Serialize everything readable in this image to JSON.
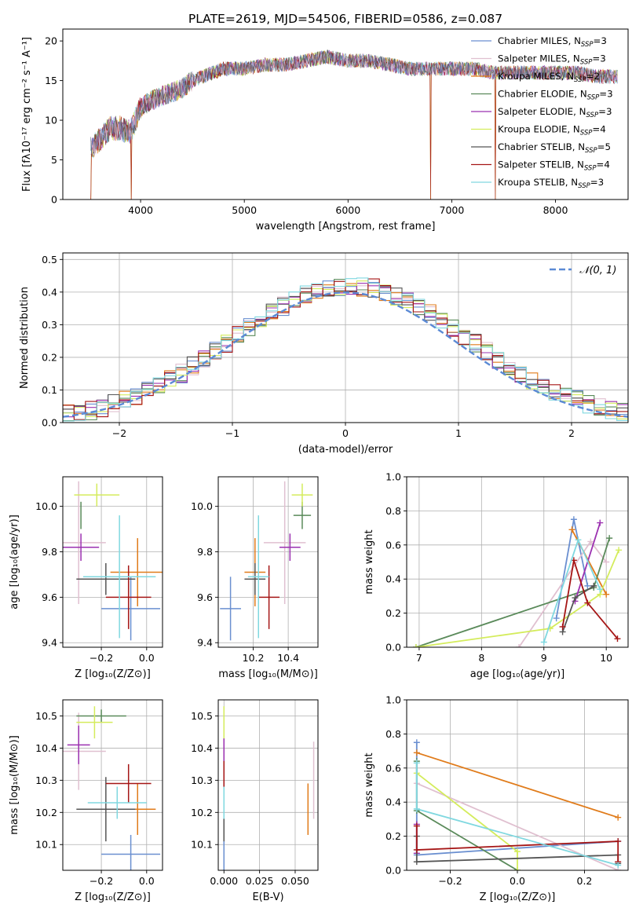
{
  "figure_title": "PLATE=2619, MJD=54506, FIBERID=0586, z=0.087",
  "models": [
    {
      "name": "Chabrier MILES",
      "nssp": "3",
      "color": "#6a8fd0"
    },
    {
      "name": "Salpeter MILES",
      "nssp": "3",
      "color": "#e0c0d0"
    },
    {
      "name": "Kroupa MILES",
      "nssp": "2",
      "color": "#e07b1a"
    },
    {
      "name": "Chabrier ELODIE",
      "nssp": "3",
      "color": "#5a8a5a"
    },
    {
      "name": "Salpeter ELODIE",
      "nssp": "3",
      "color": "#9b30b0"
    },
    {
      "name": "Kroupa ELODIE",
      "nssp": "4",
      "color": "#d4ec5c"
    },
    {
      "name": "Chabrier STELIB",
      "nssp": "5",
      "color": "#555555"
    },
    {
      "name": "Salpeter STELIB",
      "nssp": "4",
      "color": "#a51515"
    },
    {
      "name": "Kroupa STELIB",
      "nssp": "3",
      "color": "#80d8e0"
    }
  ],
  "legend_suffix": "N",
  "legend_sub": "SSP",
  "chart_data": [
    {
      "id": "spectrum",
      "type": "line",
      "xlabel": "wavelength [Angstrom, rest frame]",
      "ylabel": "Flux [fλ10⁻¹⁷ erg cm⁻² s⁻¹ A⁻¹]",
      "xlim": [
        3250,
        8700
      ],
      "ylim": [
        0,
        21.5
      ],
      "xticks": [
        4000,
        5000,
        6000,
        7000,
        8000
      ],
      "yticks": [
        0,
        5,
        10,
        15,
        20
      ],
      "grid": false,
      "legend": "right",
      "trend": [
        [
          3520,
          6.5
        ],
        [
          3600,
          7.5
        ],
        [
          3700,
          9
        ],
        [
          3800,
          9
        ],
        [
          3900,
          8.5
        ],
        [
          4000,
          11.5
        ],
        [
          4100,
          12.5
        ],
        [
          4200,
          13
        ],
        [
          4300,
          13.5
        ],
        [
          4400,
          14
        ],
        [
          4500,
          15
        ],
        [
          4600,
          15.5
        ],
        [
          4700,
          16
        ],
        [
          4800,
          16.5
        ],
        [
          5000,
          16.5
        ],
        [
          5200,
          17
        ],
        [
          5400,
          17
        ],
        [
          5600,
          17.5
        ],
        [
          5800,
          18
        ],
        [
          6000,
          17.5
        ],
        [
          6200,
          17.5
        ],
        [
          6400,
          17
        ],
        [
          6600,
          16.5
        ],
        [
          6800,
          16.5
        ],
        [
          7000,
          16.5
        ],
        [
          7200,
          16.5
        ],
        [
          7400,
          16
        ],
        [
          7600,
          16
        ],
        [
          7800,
          16
        ],
        [
          8000,
          16
        ],
        [
          8200,
          16
        ],
        [
          8400,
          15.5
        ],
        [
          8600,
          15.5
        ]
      ],
      "dips": [
        [
          3520,
          0
        ],
        [
          3910,
          0
        ],
        [
          6795,
          0
        ],
        [
          7420,
          0
        ]
      ]
    },
    {
      "id": "residuals",
      "type": "step",
      "xlabel": "(data-model)/error",
      "ylabel": "Normed distribution",
      "xlim": [
        -2.5,
        2.5
      ],
      "ylim": [
        0,
        0.52
      ],
      "xticks": [
        -2,
        -1,
        0,
        1,
        2
      ],
      "yticks": [
        0.0,
        0.1,
        0.2,
        0.3,
        0.4,
        0.5
      ],
      "grid": true,
      "legend": "top-right",
      "reference": "𝒩(0, 1)",
      "bin_width": 0.1
    },
    {
      "id": "age_vs_Z",
      "type": "errorbar",
      "xlabel": "Z [log₁₀(Z/Z⊙)]",
      "ylabel": "age  [log₁₀(age/yr)]",
      "xlim": [
        -0.37,
        0.07
      ],
      "ylim": [
        9.38,
        10.13
      ],
      "xticks": [
        -0.2,
        0.0
      ],
      "yticks": [
        9.4,
        9.6,
        9.8,
        10.0
      ],
      "grid": true,
      "points": [
        {
          "x": -0.07,
          "y": 9.55,
          "xerr": 0.13,
          "yerr": 0.14,
          "c": 0
        },
        {
          "x": -0.3,
          "y": 9.84,
          "xerr": 0.12,
          "yerr": 0.27,
          "c": 1
        },
        {
          "x": -0.04,
          "y": 9.71,
          "xerr": 0.12,
          "yerr": 0.15,
          "c": 2
        },
        {
          "x": -0.29,
          "y": 9.96,
          "xerr": 0.0,
          "yerr": 0.06,
          "c": 3
        },
        {
          "x": -0.29,
          "y": 9.82,
          "xerr": 0.08,
          "yerr": 0.06,
          "c": 4
        },
        {
          "x": -0.22,
          "y": 10.05,
          "xerr": 0.1,
          "yerr": 0.05,
          "c": 5
        },
        {
          "x": -0.18,
          "y": 9.68,
          "xerr": 0.13,
          "yerr": 0.07,
          "c": 6
        },
        {
          "x": -0.08,
          "y": 9.6,
          "xerr": 0.1,
          "yerr": 0.14,
          "c": 7
        },
        {
          "x": -0.12,
          "y": 9.69,
          "xerr": 0.16,
          "yerr": 0.27,
          "c": 8
        }
      ]
    },
    {
      "id": "age_vs_mass",
      "type": "errorbar",
      "xlabel": "mass [log₁₀(M/M⊙)]",
      "ylabel": "",
      "xlim": [
        10.0,
        10.57
      ],
      "ylim": [
        9.38,
        10.13
      ],
      "xticks": [
        10.2,
        10.4
      ],
      "yticks": [
        9.4,
        9.6,
        9.8,
        10.0
      ],
      "grid": true,
      "points": [
        {
          "x": 10.07,
          "y": 9.55,
          "xerr": 0.06,
          "yerr": 0.14,
          "c": 0
        },
        {
          "x": 10.38,
          "y": 9.84,
          "xerr": 0.12,
          "yerr": 0.27,
          "c": 1
        },
        {
          "x": 10.21,
          "y": 9.71,
          "xerr": 0.06,
          "yerr": 0.15,
          "c": 2
        },
        {
          "x": 10.48,
          "y": 9.96,
          "xerr": 0.05,
          "yerr": 0.06,
          "c": 3
        },
        {
          "x": 10.41,
          "y": 9.82,
          "xerr": 0.06,
          "yerr": 0.06,
          "c": 4
        },
        {
          "x": 10.48,
          "y": 10.05,
          "xerr": 0.06,
          "yerr": 0.05,
          "c": 5
        },
        {
          "x": 10.21,
          "y": 9.68,
          "xerr": 0.06,
          "yerr": 0.07,
          "c": 6
        },
        {
          "x": 10.29,
          "y": 9.6,
          "xerr": 0.06,
          "yerr": 0.14,
          "c": 7
        },
        {
          "x": 10.23,
          "y": 9.69,
          "xerr": 0.06,
          "yerr": 0.27,
          "c": 8
        }
      ]
    },
    {
      "id": "weight_vs_age",
      "type": "line",
      "xlabel": "age  [log₁₀(age/yr)]",
      "ylabel": "mass weight",
      "xlim": [
        6.8,
        10.35
      ],
      "ylim": [
        0,
        1.0
      ],
      "xticks": [
        7,
        8,
        9,
        10
      ],
      "yticks": [
        0.0,
        0.2,
        0.4,
        0.6,
        0.8,
        1.0
      ],
      "grid": true,
      "series": [
        {
          "c": 0,
          "points": [
            [
              9.2,
              0.17
            ],
            [
              9.48,
              0.75
            ],
            [
              9.7,
              0.36
            ]
          ]
        },
        {
          "c": 1,
          "points": [
            [
              8.6,
              0.0
            ],
            [
              9.75,
              0.62
            ],
            [
              10.0,
              0.5
            ]
          ]
        },
        {
          "c": 2,
          "points": [
            [
              9.45,
              0.69
            ],
            [
              10.0,
              0.31
            ]
          ]
        },
        {
          "c": 3,
          "points": [
            [
              6.95,
              0.0
            ],
            [
              9.8,
              0.35
            ],
            [
              10.05,
              0.64
            ]
          ]
        },
        {
          "c": 4,
          "points": [
            [
              9.5,
              0.27
            ],
            [
              9.9,
              0.73
            ]
          ]
        },
        {
          "c": 5,
          "points": [
            [
              6.95,
              0.0
            ],
            [
              9.1,
              0.11
            ],
            [
              9.9,
              0.31
            ],
            [
              10.2,
              0.57
            ]
          ]
        },
        {
          "c": 6,
          "points": [
            [
              9.3,
              0.09
            ],
            [
              9.5,
              0.29
            ],
            [
              9.8,
              0.36
            ]
          ]
        },
        {
          "c": 7,
          "points": [
            [
              9.3,
              0.12
            ],
            [
              9.48,
              0.51
            ],
            [
              9.7,
              0.26
            ],
            [
              10.18,
              0.05
            ]
          ]
        },
        {
          "c": 8,
          "points": [
            [
              9.0,
              0.03
            ],
            [
              9.55,
              0.63
            ],
            [
              9.9,
              0.34
            ]
          ]
        }
      ]
    },
    {
      "id": "mass_vs_Z",
      "type": "errorbar",
      "xlabel": "Z [log₁₀(Z/Z⊙)]",
      "ylabel": "mass [log₁₀(M/M⊙)]",
      "xlim": [
        -0.37,
        0.07
      ],
      "ylim": [
        10.02,
        10.55
      ],
      "xticks": [
        -0.2,
        0.0
      ],
      "yticks": [
        10.1,
        10.2,
        10.3,
        10.4,
        10.5
      ],
      "grid": true,
      "points": [
        {
          "x": -0.07,
          "y": 10.07,
          "xerr": 0.13,
          "yerr": 0.06,
          "c": 0
        },
        {
          "x": -0.3,
          "y": 10.39,
          "xerr": 0.12,
          "yerr": 0.12,
          "c": 1
        },
        {
          "x": -0.04,
          "y": 10.21,
          "xerr": 0.08,
          "yerr": 0.08,
          "c": 2
        },
        {
          "x": -0.2,
          "y": 10.5,
          "xerr": 0.11,
          "yerr": 0.02,
          "c": 3
        },
        {
          "x": -0.3,
          "y": 10.41,
          "xerr": 0.05,
          "yerr": 0.06,
          "c": 4
        },
        {
          "x": -0.23,
          "y": 10.48,
          "xerr": 0.08,
          "yerr": 0.05,
          "c": 5
        },
        {
          "x": -0.18,
          "y": 10.21,
          "xerr": 0.13,
          "yerr": 0.1,
          "c": 6
        },
        {
          "x": -0.08,
          "y": 10.29,
          "xerr": 0.1,
          "yerr": 0.06,
          "c": 7
        },
        {
          "x": -0.13,
          "y": 10.23,
          "xerr": 0.13,
          "yerr": 0.05,
          "c": 8
        }
      ]
    },
    {
      "id": "mass_vs_ebv",
      "type": "errorbar",
      "xlabel": "E(B-V)",
      "ylabel": "",
      "xlim": [
        -0.004,
        0.066
      ],
      "ylim": [
        10.02,
        10.55
      ],
      "xticks": [
        0.0,
        0.025,
        0.05
      ],
      "yticks": [
        10.1,
        10.2,
        10.3,
        10.4,
        10.5
      ],
      "grid": true,
      "points": [
        {
          "x": 0.0,
          "y": 10.07,
          "xerr": 0.0,
          "yerr": 0.06,
          "c": 0
        },
        {
          "x": 0.063,
          "y": 10.3,
          "xerr": 0.0,
          "yerr": 0.12,
          "c": 1
        },
        {
          "x": 0.059,
          "y": 10.21,
          "xerr": 0.0,
          "yerr": 0.08,
          "c": 2
        },
        {
          "x": 0.0,
          "y": 10.5,
          "xerr": 0.0,
          "yerr": 0.02,
          "c": 3
        },
        {
          "x": 0.0,
          "y": 10.41,
          "xerr": 0.0,
          "yerr": 0.06,
          "c": 4
        },
        {
          "x": 0.0,
          "y": 10.48,
          "xerr": 0.0,
          "yerr": 0.05,
          "c": 5
        },
        {
          "x": 0.0,
          "y": 10.21,
          "xerr": 0.0,
          "yerr": 0.1,
          "c": 6
        },
        {
          "x": 0.0,
          "y": 10.3,
          "xerr": 0.0,
          "yerr": 0.06,
          "c": 7
        },
        {
          "x": 0.0,
          "y": 10.23,
          "xerr": 0.0,
          "yerr": 0.05,
          "c": 8
        }
      ]
    },
    {
      "id": "weight_vs_Z",
      "type": "line",
      "xlabel": "Z [log₁₀(Z/Z⊙)]",
      "ylabel": "mass weight",
      "xlim": [
        -0.33,
        0.33
      ],
      "ylim": [
        0,
        1.0
      ],
      "xticks": [
        -0.2,
        0.0,
        0.2
      ],
      "yticks": [
        0.0,
        0.2,
        0.4,
        0.6,
        0.8,
        1.0
      ],
      "grid": true,
      "series": [
        {
          "c": 0,
          "points": [
            [
              -0.3,
              0.75
            ],
            [
              -0.3,
              0.09
            ],
            [
              0.3,
              0.17
            ]
          ]
        },
        {
          "c": 1,
          "points": [
            [
              -0.3,
              0.51
            ],
            [
              0.3,
              0.0
            ]
          ]
        },
        {
          "c": 2,
          "points": [
            [
              -0.3,
              0.69
            ],
            [
              0.3,
              0.31
            ]
          ]
        },
        {
          "c": 3,
          "points": [
            [
              -0.3,
              0.64
            ],
            [
              -0.3,
              0.35
            ],
            [
              0.0,
              0.0
            ]
          ]
        },
        {
          "c": 4,
          "points": [
            [
              -0.3,
              0.27
            ],
            [
              -0.3,
              0.1
            ]
          ]
        },
        {
          "c": 5,
          "points": [
            [
              -0.3,
              0.57
            ],
            [
              0.0,
              0.11
            ],
            [
              0.0,
              0.0
            ]
          ]
        },
        {
          "c": 6,
          "points": [
            [
              -0.3,
              0.2
            ],
            [
              -0.3,
              0.05
            ],
            [
              0.3,
              0.09
            ],
            [
              0.3,
              0.04
            ]
          ]
        },
        {
          "c": 7,
          "points": [
            [
              -0.3,
              0.26
            ],
            [
              -0.3,
              0.12
            ],
            [
              0.3,
              0.17
            ],
            [
              0.3,
              0.05
            ]
          ]
        },
        {
          "c": 8,
          "points": [
            [
              -0.3,
              0.63
            ],
            [
              -0.3,
              0.36
            ],
            [
              0.3,
              0.03
            ]
          ]
        }
      ]
    }
  ]
}
